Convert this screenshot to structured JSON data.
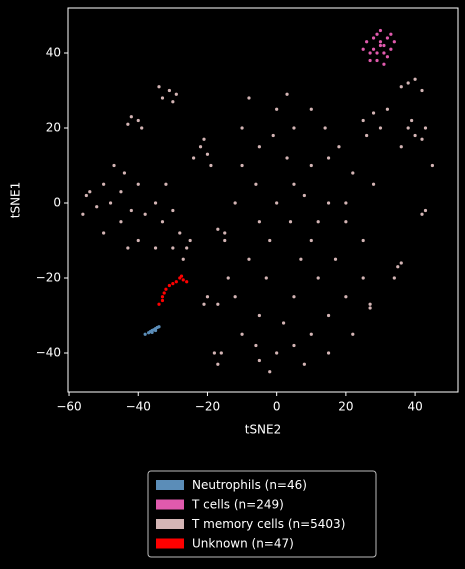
{
  "chart_data": {
    "type": "scatter",
    "xlabel": "tSNE2",
    "ylabel": "tSNE1",
    "xlim": [
      -60.3,
      52.4
    ],
    "ylim": [
      -50.4,
      52
    ],
    "xticks": [
      {
        "value": -60,
        "label": "−60"
      },
      {
        "value": -40,
        "label": "−40"
      },
      {
        "value": -20,
        "label": "−20"
      },
      0,
      20,
      40
    ],
    "yticks": [
      {
        "value": -40,
        "label": "−40"
      },
      {
        "value": -20,
        "label": "−20"
      },
      0,
      20,
      40
    ],
    "legend": "lower center",
    "series": [
      {
        "name": "Neutrophils (n=46)",
        "color": "#5b8db8",
        "x": [
          -38,
          -37,
          -36.5,
          -36,
          -35.5,
          -35,
          -34.5,
          -34,
          -35,
          -36
        ],
        "values": [
          -35,
          -34.6,
          -34.3,
          -34,
          -33.8,
          -33.5,
          -33.2,
          -33,
          -34,
          -34.5
        ]
      },
      {
        "name": "T cells (n=249)",
        "color": "#e05aad",
        "x": [
          30,
          28,
          32,
          31,
          27,
          29,
          33,
          26,
          30,
          34,
          28,
          31,
          25,
          29,
          32,
          27,
          33,
          30,
          29,
          31
        ],
        "values": [
          42,
          44,
          44,
          40,
          40,
          38,
          41,
          43,
          46,
          43,
          41,
          37,
          41,
          45,
          39,
          38,
          45,
          43,
          40,
          42
        ]
      },
      {
        "name": "T memory cells (n=5403)",
        "color": "#d4b5b5",
        "x": [
          0,
          5,
          -5,
          10,
          -10,
          10,
          -8,
          15,
          20,
          12,
          5,
          -5,
          0,
          -5,
          5,
          10,
          15,
          20,
          -10,
          -12,
          -15,
          -12,
          -10,
          0,
          5,
          10,
          -5,
          3,
          8,
          15,
          18,
          22,
          20,
          25,
          25,
          15,
          8,
          -2,
          -6,
          2,
          -3,
          7,
          12,
          -6,
          -2,
          4,
          -8,
          3,
          17,
          22,
          -14,
          -17,
          -18,
          28,
          -1,
          14,
          -56,
          -54,
          -50,
          -48,
          -45,
          -42,
          -40,
          -45,
          -50,
          -47,
          -38,
          -35,
          -33,
          -30,
          -32,
          -43,
          -40,
          -30,
          -28,
          -35,
          -52,
          -55,
          -44,
          -33,
          -31,
          -30,
          -34,
          -29,
          -40,
          -42,
          -39,
          -43,
          -22,
          -20,
          -21,
          -24,
          -19,
          25,
          28,
          30,
          26,
          32,
          38,
          40,
          36,
          42,
          39,
          38,
          40,
          42,
          36,
          43,
          45,
          42,
          43,
          35,
          34,
          36,
          27,
          27,
          -15,
          -17,
          -20,
          -21,
          -16,
          -17,
          -25,
          -27,
          -26
        ],
        "values": [
          0,
          5,
          -5,
          10,
          10,
          -10,
          -15,
          0,
          -5,
          -20,
          -25,
          -30,
          -40,
          -42,
          -38,
          -35,
          -30,
          -25,
          -35,
          -25,
          -10,
          0,
          20,
          25,
          20,
          25,
          15,
          12,
          2,
          12,
          15,
          8,
          0,
          -10,
          -20,
          -40,
          -43,
          -45,
          -38,
          -32,
          -20,
          -15,
          -5,
          5,
          -10,
          -5,
          28,
          29,
          -15,
          -35,
          -20,
          -27,
          -40,
          5,
          18,
          20,
          -3,
          3,
          5,
          0,
          3,
          -2,
          5,
          -5,
          -8,
          10,
          -3,
          0,
          -5,
          -2,
          5,
          -12,
          -10,
          -12,
          -8,
          -12,
          -1,
          2,
          8,
          28,
          30,
          27,
          31,
          29,
          22,
          23,
          20,
          21,
          15,
          13,
          17,
          12,
          10,
          22,
          24,
          20,
          18,
          25,
          20,
          18,
          15,
          17,
          22,
          32,
          33,
          30,
          31,
          20,
          10,
          -3,
          -2,
          -17,
          -20,
          -16,
          -28,
          -27,
          -8,
          -7,
          -25,
          -27,
          -40,
          -43,
          -10,
          -15,
          -12
        ]
      },
      {
        "name": "Unknown (n=47)",
        "color": "#ff0000",
        "x": [
          -26,
          -27,
          -28,
          -29,
          -30,
          -31,
          -32,
          -32.5,
          -33,
          -33,
          -34,
          -27.5
        ],
        "values": [
          -21,
          -20.5,
          -20,
          -21,
          -21.5,
          -22,
          -23,
          -24,
          -25,
          -26,
          -27,
          -19.5
        ]
      }
    ]
  }
}
